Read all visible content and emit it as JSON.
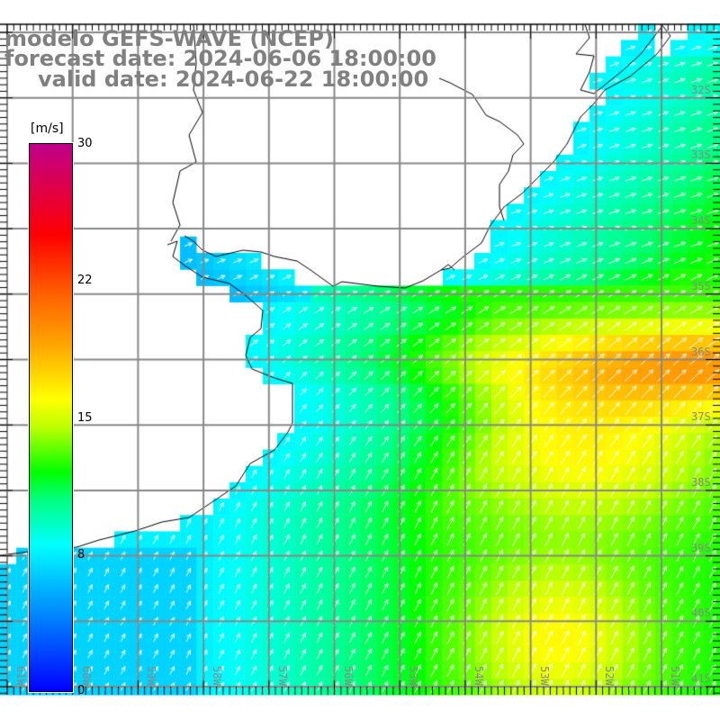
{
  "title": {
    "model": "modelo GEFS-WAVE (NCEP)",
    "forecast": "forecast date: 2024-06-06 18:00:00",
    "valid": "valid date: 2024-06-22 18:00:00"
  },
  "colorbar": {
    "unit": "[m/s]",
    "ticks": [
      "30",
      "22",
      "15",
      "8",
      "0"
    ],
    "min": 0,
    "max": 30
  },
  "grid": {
    "latitudes": [
      "32S",
      "33S",
      "34S",
      "35S",
      "36S",
      "37S",
      "38S",
      "39S",
      "40S",
      "41S"
    ],
    "longitudes": [
      "61W",
      "60W",
      "59W",
      "58W",
      "57W",
      "56W",
      "55W",
      "54W",
      "53W",
      "52W",
      "51W"
    ]
  },
  "colors": {
    "land": "#ffffff",
    "coastline": "#000000",
    "gridline": "#888888",
    "arrow": "#ffffff",
    "title_text": "#808080"
  }
}
